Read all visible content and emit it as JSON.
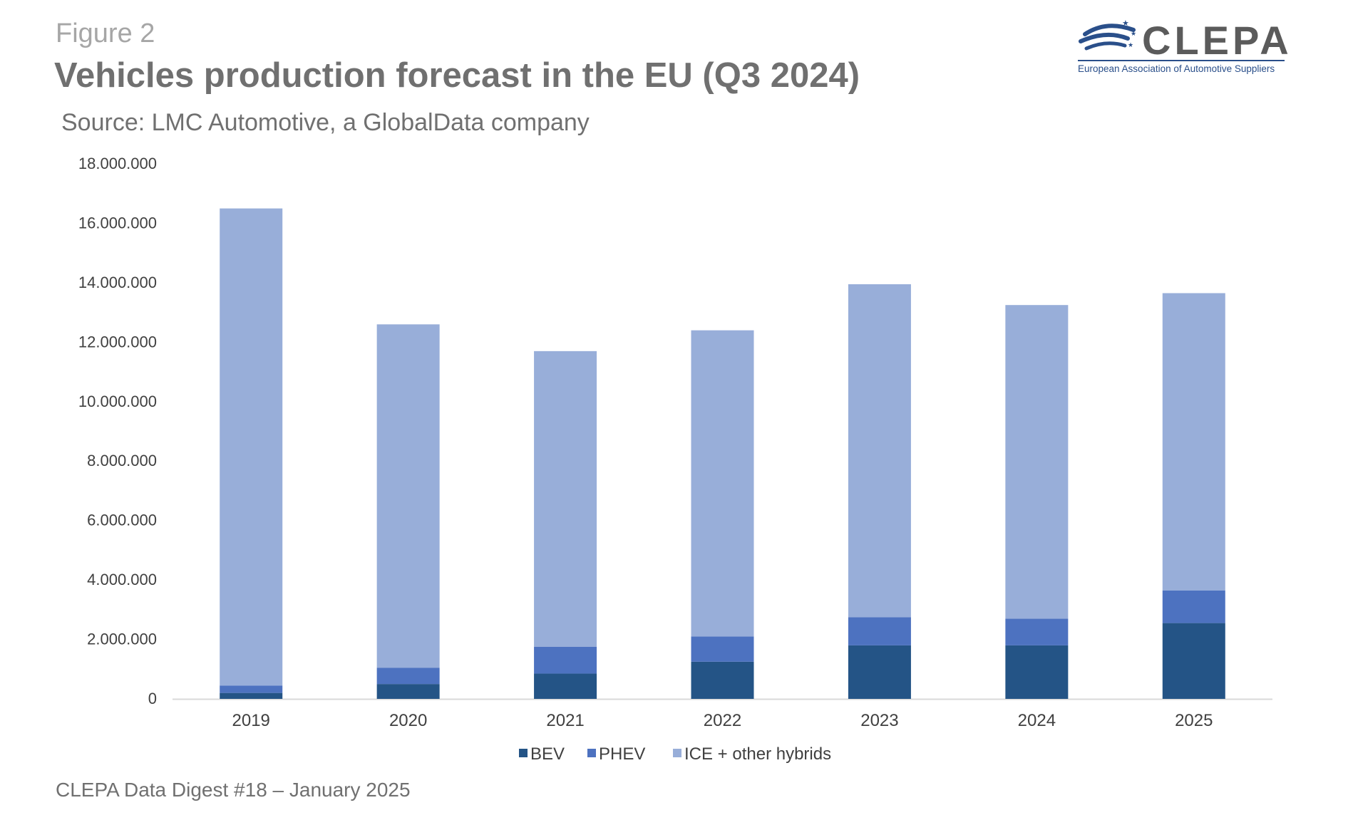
{
  "figure_label": "Figure 2",
  "title": "Vehicles production forecast in the EU (Q3 2024)",
  "subtitle": "Source: LMC Automotive, a GlobalData company",
  "logo": {
    "name": "CLEPA",
    "tagline": "European Association of Automotive Suppliers",
    "icon": "clepa-swoosh-stars-icon",
    "color": "#2a4f8a"
  },
  "footer": "CLEPA Data Digest #18 – January 2025",
  "chart_data": {
    "type": "bar",
    "stacked": true,
    "categories": [
      "2019",
      "2020",
      "2021",
      "2022",
      "2023",
      "2024",
      "2025"
    ],
    "series": [
      {
        "name": "BEV",
        "color": "#245486",
        "values": [
          200000,
          500000,
          850000,
          1250000,
          1800000,
          1800000,
          2550000
        ]
      },
      {
        "name": "PHEV",
        "color": "#4d72c0",
        "values": [
          250000,
          550000,
          900000,
          850000,
          950000,
          900000,
          1100000
        ]
      },
      {
        "name": "ICE + other hybrids",
        "color": "#98aed9",
        "values": [
          16050000,
          11550000,
          9950000,
          10300000,
          11200000,
          10550000,
          10000000
        ]
      }
    ],
    "ylim": [
      0,
      18000000
    ],
    "yticks": [
      0,
      2000000,
      4000000,
      6000000,
      8000000,
      10000000,
      12000000,
      14000000,
      16000000,
      18000000
    ],
    "ytick_labels": [
      "0",
      "2.000.000",
      "4.000.000",
      "6.000.000",
      "8.000.000",
      "10.000.000",
      "12.000.000",
      "14.000.000",
      "16.000.000",
      "18.000.000"
    ],
    "grid": false,
    "legend_position": "bottom-center"
  }
}
